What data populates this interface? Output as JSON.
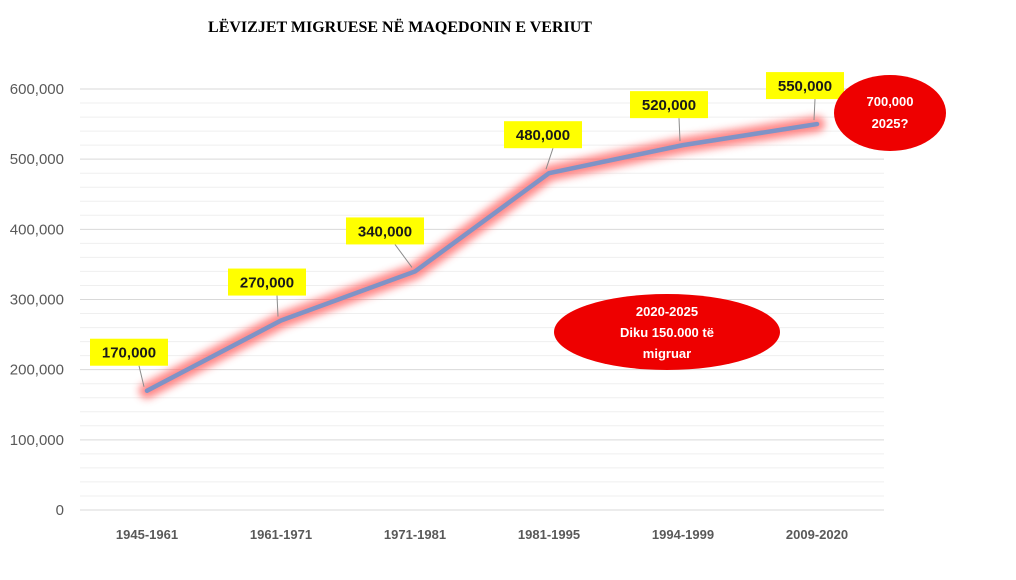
{
  "chart_data": {
    "type": "line",
    "title": "LËVIZJET MIGRUESE NË MAQEDONIN E VERIUT",
    "xlabel": "",
    "ylabel": "",
    "categories": [
      "1945-1961",
      "1961-1971",
      "1971-1981",
      "1981-1995",
      "1994-1999",
      "2009-2020"
    ],
    "values": [
      170000,
      270000,
      340000,
      480000,
      520000,
      550000
    ],
    "data_labels": [
      "170,000",
      "270,000",
      "340,000",
      "480,000",
      "520,000",
      "550,000"
    ],
    "ylim": [
      0,
      600000
    ],
    "yticks": [
      0,
      100000,
      200000,
      300000,
      400000,
      500000,
      600000
    ],
    "ytick_labels": [
      "0",
      "100,000",
      "200,000",
      "300,000",
      "400,000",
      "500,000",
      "600,000"
    ],
    "grid": true,
    "legend": "none",
    "colors": {
      "line": "#7f93c6",
      "glow": "#ff6b6b",
      "label_bg": "#ffff00",
      "note_bg": "#ee0000"
    },
    "annotations": [
      {
        "lines": [
          "700,000",
          "2025?"
        ]
      },
      {
        "lines": [
          "2020-2025",
          "Diku 150.000 të",
          "migruar"
        ]
      }
    ]
  }
}
